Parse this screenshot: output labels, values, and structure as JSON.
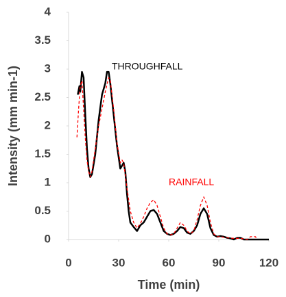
{
  "chart_data": {
    "type": "line",
    "x_label": "Time (min)",
    "y_label": "Intensity (mm min-1)",
    "xlim": [
      0,
      120
    ],
    "xticks": [
      0,
      30,
      60,
      90,
      120
    ],
    "ylim": [
      0,
      4
    ],
    "yticks": [
      0,
      0.5,
      1,
      1.5,
      2,
      2.5,
      3,
      3.5,
      4
    ],
    "grid": false,
    "series": [
      {
        "name": "THROUGHFALL",
        "color": "#000000",
        "dash": false,
        "x": [
          5.5,
          6.5,
          7,
          8,
          9,
          10,
          11,
          12,
          13,
          14,
          16,
          18,
          20,
          22,
          23,
          24,
          25,
          27,
          29,
          31,
          32,
          33,
          34,
          35,
          36,
          37,
          39,
          41,
          43,
          45,
          47,
          49,
          51,
          53,
          55,
          57,
          59,
          61,
          63,
          65,
          67,
          69,
          71,
          73,
          75,
          77,
          79,
          81,
          83,
          85,
          87,
          89,
          91,
          93,
          95,
          97,
          99,
          101,
          103,
          105,
          120
        ],
        "values": [
          2.55,
          2.7,
          2.6,
          2.95,
          2.85,
          2.2,
          1.6,
          1.25,
          1.1,
          1.15,
          1.5,
          2.1,
          2.55,
          2.75,
          2.95,
          2.95,
          2.75,
          2.2,
          1.65,
          1.25,
          1.3,
          1.35,
          1.2,
          0.8,
          0.5,
          0.3,
          0.22,
          0.15,
          0.25,
          0.3,
          0.4,
          0.5,
          0.52,
          0.45,
          0.3,
          0.15,
          0.1,
          0.08,
          0.1,
          0.15,
          0.22,
          0.2,
          0.12,
          0.1,
          0.15,
          0.25,
          0.45,
          0.55,
          0.45,
          0.2,
          0.08,
          0.05,
          0.06,
          0.05,
          0.03,
          0.02,
          0,
          0.03,
          0.03,
          0,
          0
        ]
      },
      {
        "name": "RAINFALL",
        "color": "#ff0000",
        "dash": true,
        "x": [
          5,
          6,
          7,
          8,
          9,
          10,
          11,
          12,
          13,
          14,
          16,
          18,
          20,
          22,
          24,
          25,
          27,
          29,
          31,
          32,
          33,
          35,
          37,
          39,
          41,
          43,
          45,
          47,
          49,
          51,
          53,
          55,
          57,
          59,
          61,
          63,
          65,
          67,
          69,
          71,
          73,
          75,
          77,
          79,
          81,
          83,
          85,
          87,
          89,
          91,
          95,
          99,
          103,
          107,
          109,
          112,
          113
        ],
        "values": [
          1.8,
          2.3,
          2.7,
          2.8,
          2.3,
          1.8,
          1.4,
          1.2,
          1.1,
          1.2,
          1.6,
          2.0,
          2.3,
          2.6,
          2.85,
          2.8,
          2.3,
          1.7,
          1.35,
          1.4,
          1.35,
          0.9,
          0.5,
          0.3,
          0.2,
          0.28,
          0.4,
          0.55,
          0.65,
          0.7,
          0.6,
          0.4,
          0.2,
          0.1,
          0.08,
          0.1,
          0.2,
          0.3,
          0.25,
          0.15,
          0.1,
          0.15,
          0.35,
          0.6,
          0.75,
          0.6,
          0.3,
          0.1,
          0.05,
          0.05,
          0.03,
          0.02,
          0.02,
          0,
          0.05,
          0.05,
          0
        ]
      }
    ]
  }
}
